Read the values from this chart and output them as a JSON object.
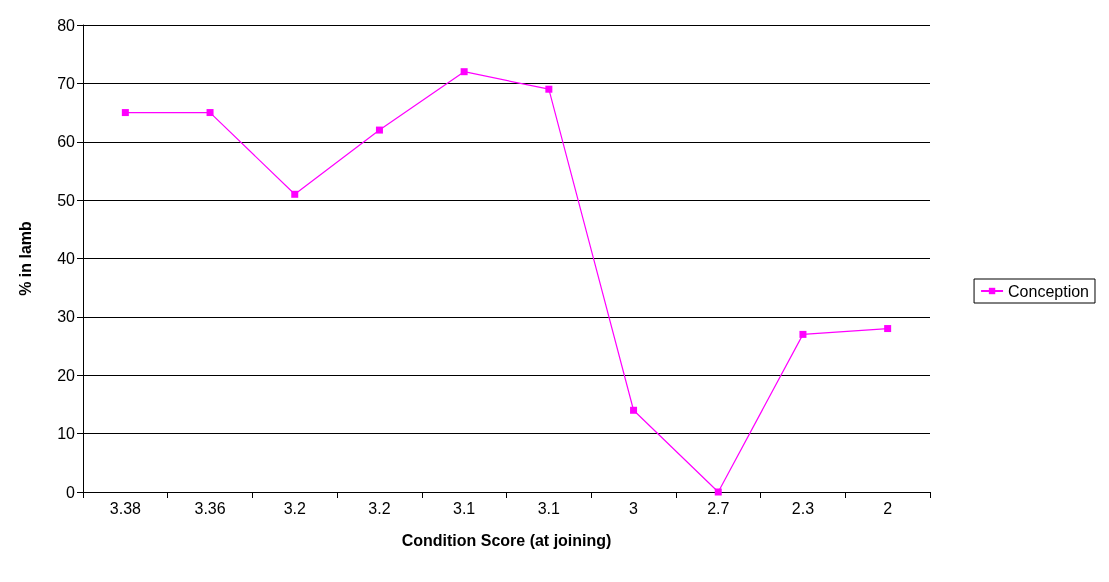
{
  "chart_data": {
    "type": "line",
    "xlabel": "Condition Score (at joining)",
    "ylabel": "% in lamb",
    "categories": [
      "3.38",
      "3.36",
      "3.2",
      "3.2",
      "3.1",
      "3.1",
      "3",
      "2.7",
      "2.3",
      "2"
    ],
    "series": [
      {
        "name": "Conception",
        "color": "#ff00ff",
        "values": [
          65,
          65,
          51,
          62,
          72,
          69,
          14,
          0,
          27,
          28
        ]
      }
    ],
    "ylim": [
      0,
      80
    ],
    "yticks": [
      0,
      10,
      20,
      30,
      40,
      50,
      60,
      70,
      80
    ],
    "grid": "y",
    "legend": "right",
    "marker": "square",
    "line_style": "solid"
  }
}
